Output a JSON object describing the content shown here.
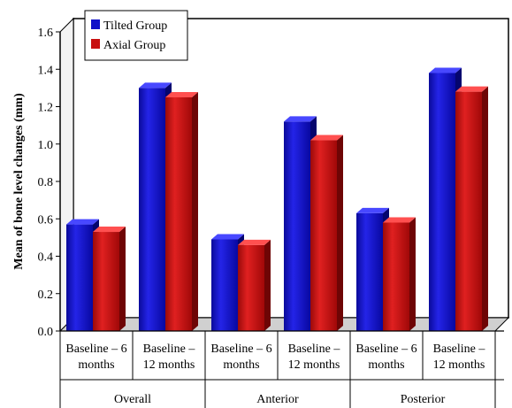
{
  "chart_data": {
    "type": "bar",
    "title": "",
    "ylabel": "Mean of bone level changes (mm)",
    "xlabel": "",
    "ylim": [
      0,
      1.6
    ],
    "yticks": [
      "0.0",
      "0.2",
      "0.4",
      "0.6",
      "0.8",
      "1.0",
      "1.2",
      "1.4",
      "1.6"
    ],
    "grid": false,
    "legend_position": "top-left",
    "categories": [
      {
        "line1": "Baseline – 6",
        "line2": "months"
      },
      {
        "line1": "Baseline –",
        "line2": "12 months"
      },
      {
        "line1": "Baseline – 6",
        "line2": "months"
      },
      {
        "line1": "Baseline –",
        "line2": "12 months"
      },
      {
        "line1": "Baseline – 6",
        "line2": "months"
      },
      {
        "line1": "Baseline –",
        "line2": "12 months"
      }
    ],
    "groups": [
      "Overall",
      "Anterior",
      "Posterior"
    ],
    "series": [
      {
        "name": "Tilted Group",
        "color": "#1010c8",
        "values": [
          0.57,
          1.3,
          0.49,
          1.12,
          0.63,
          1.38
        ]
      },
      {
        "name": "Axial Group",
        "color": "#c81010",
        "values": [
          0.53,
          1.25,
          0.46,
          1.02,
          0.58,
          1.28
        ]
      }
    ]
  }
}
